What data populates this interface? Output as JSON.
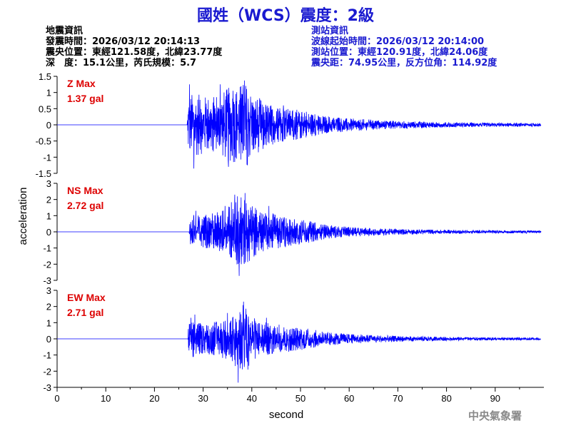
{
  "title": "國姓（WCS）震度：2級",
  "quake_info": {
    "heading": "地震資訊",
    "time": "發震時間：2026/03/12 20:14:13",
    "epicenter": "震央位置：東經121.58度，北緯23.77度",
    "depth_magnitude": "深　度：15.1公里，芮氏規模：5.7"
  },
  "station_info": {
    "heading": "測站資訊",
    "wave_start": "波線起始時間：2026/03/12 20:14:00",
    "location": "測站位置：東經120.91度，北緯24.06度",
    "distance": "震央距：74.95公里，反方位角：114.92度"
  },
  "watermark": "中央氣象署",
  "colors": {
    "trace": "#0000ff",
    "title": "#1a1ad0",
    "max_label": "#dd0000",
    "station_text": "#1a1ad0"
  },
  "chart_data": {
    "type": "line",
    "xlabel": "second",
    "ylabel": "acceleration",
    "xlim": [
      0,
      100
    ],
    "xticks": [
      0,
      10,
      20,
      30,
      40,
      50,
      60,
      70,
      80,
      90
    ],
    "grid": false,
    "panels": [
      {
        "channel": "Z",
        "max_label": "Z Max",
        "max_value": "1.37 gal",
        "ylim": [
          -1.5,
          1.5
        ],
        "yticks": [
          "1.5",
          "1",
          "0.5",
          "0",
          "-0.5",
          "-1",
          "-1.5"
        ],
        "arrival_s": 26.8,
        "envelope": [
          [
            0,
            0
          ],
          [
            26.7,
            0.02
          ],
          [
            26.9,
            0.9
          ],
          [
            28,
            1.0
          ],
          [
            30,
            0.9
          ],
          [
            33,
            0.9
          ],
          [
            35,
            1.15
          ],
          [
            37,
            1.2
          ],
          [
            38.5,
            1.37
          ],
          [
            40,
            1.0
          ],
          [
            42,
            0.8
          ],
          [
            45,
            0.55
          ],
          [
            48,
            0.5
          ],
          [
            50,
            0.45
          ],
          [
            55,
            0.28
          ],
          [
            60,
            0.2
          ],
          [
            70,
            0.12
          ],
          [
            80,
            0.08
          ],
          [
            90,
            0.06
          ],
          [
            100,
            0.05
          ]
        ],
        "peaks": [
          [
            27.2,
            1.25
          ],
          [
            28.1,
            -1.35
          ],
          [
            33.5,
            1.25
          ],
          [
            35.2,
            -1.3
          ],
          [
            38.5,
            1.37
          ],
          [
            39.1,
            -1.25
          ],
          [
            46.5,
            0.6
          ]
        ]
      },
      {
        "channel": "NS",
        "max_label": "NS Max",
        "max_value": "2.72 gal",
        "ylim": [
          -3,
          3
        ],
        "yticks": [
          "3",
          "2",
          "1",
          "0",
          "-1",
          "-2",
          "-3"
        ],
        "arrival_s": 27.2,
        "envelope": [
          [
            0,
            0
          ],
          [
            27,
            0.02
          ],
          [
            27.3,
            0.9
          ],
          [
            28,
            1.1
          ],
          [
            30,
            1.0
          ],
          [
            33,
            1.3
          ],
          [
            35,
            1.6
          ],
          [
            37,
            2.2
          ],
          [
            38.5,
            2.4
          ],
          [
            40,
            1.6
          ],
          [
            42,
            1.3
          ],
          [
            45,
            1.1
          ],
          [
            48,
            0.9
          ],
          [
            50,
            0.8
          ],
          [
            55,
            0.45
          ],
          [
            60,
            0.3
          ],
          [
            70,
            0.18
          ],
          [
            80,
            0.12
          ],
          [
            90,
            0.09
          ],
          [
            100,
            0.08
          ]
        ],
        "peaks": [
          [
            28.5,
            1.3
          ],
          [
            34.5,
            1.6
          ],
          [
            36.5,
            2.3
          ],
          [
            37.4,
            -2.72
          ],
          [
            38.6,
            2.4
          ],
          [
            39.5,
            -1.8
          ],
          [
            43.5,
            1.6
          ]
        ]
      },
      {
        "channel": "EW",
        "max_label": "EW Max",
        "max_value": "2.71 gal",
        "ylim": [
          -3,
          3
        ],
        "yticks": [
          "3",
          "2",
          "1",
          "0",
          "-1",
          "-2",
          "-3"
        ],
        "arrival_s": 26.9,
        "envelope": [
          [
            0,
            0
          ],
          [
            26.8,
            0.02
          ],
          [
            27,
            1.0
          ],
          [
            28,
            1.2
          ],
          [
            30,
            0.9
          ],
          [
            33,
            1.1
          ],
          [
            35,
            1.3
          ],
          [
            37,
            1.9
          ],
          [
            38.5,
            2.2
          ],
          [
            40,
            1.4
          ],
          [
            42,
            1.1
          ],
          [
            45,
            0.9
          ],
          [
            48,
            0.8
          ],
          [
            50,
            0.7
          ],
          [
            55,
            0.45
          ],
          [
            60,
            0.3
          ],
          [
            70,
            0.18
          ],
          [
            80,
            0.12
          ],
          [
            90,
            0.09
          ],
          [
            100,
            0.08
          ]
        ],
        "peaks": [
          [
            27.5,
            1.3
          ],
          [
            28.3,
            1.5
          ],
          [
            35,
            1.6
          ],
          [
            37.2,
            -2.71
          ],
          [
            38.3,
            2.3
          ],
          [
            39.2,
            -1.9
          ],
          [
            43,
            1.3
          ]
        ]
      }
    ]
  }
}
